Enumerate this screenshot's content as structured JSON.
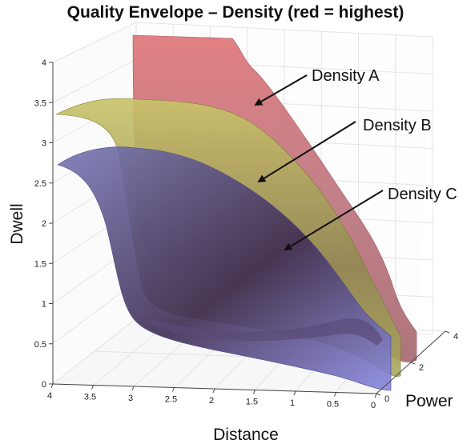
{
  "chart_data": {
    "type": "surface3d",
    "title": "Quality Envelope – Density (red = highest)",
    "xlabel": "Distance",
    "ylabel": "Dwell",
    "zlabel": "Power",
    "xlim": [
      0,
      4
    ],
    "ylim": [
      0,
      4
    ],
    "zlim": [
      0,
      4
    ],
    "x_ticks": [
      "4",
      "3.5",
      "3",
      "2.5",
      "2",
      "1.5",
      "1",
      "0.5",
      "0"
    ],
    "y_ticks": [
      "0",
      "0.5",
      "1",
      "1.5",
      "2",
      "2.5",
      "3",
      "3.5",
      "4"
    ],
    "z_ticks": [
      "0",
      "2",
      "4"
    ],
    "grid": true,
    "series": [
      {
        "name": "Density A",
        "color": "#d9686e",
        "peak_dwell": 4.0
      },
      {
        "name": "Density B",
        "color": "#b8b45e",
        "peak_dwell": 3.5
      },
      {
        "name": "Density C",
        "color": "#6f6fb6",
        "peak_dwell": 2.8
      }
    ],
    "annotations": [
      {
        "text": "Density A",
        "series": "Density A"
      },
      {
        "text": "Density B",
        "series": "Density B"
      },
      {
        "text": "Density C",
        "series": "Density C"
      }
    ]
  }
}
